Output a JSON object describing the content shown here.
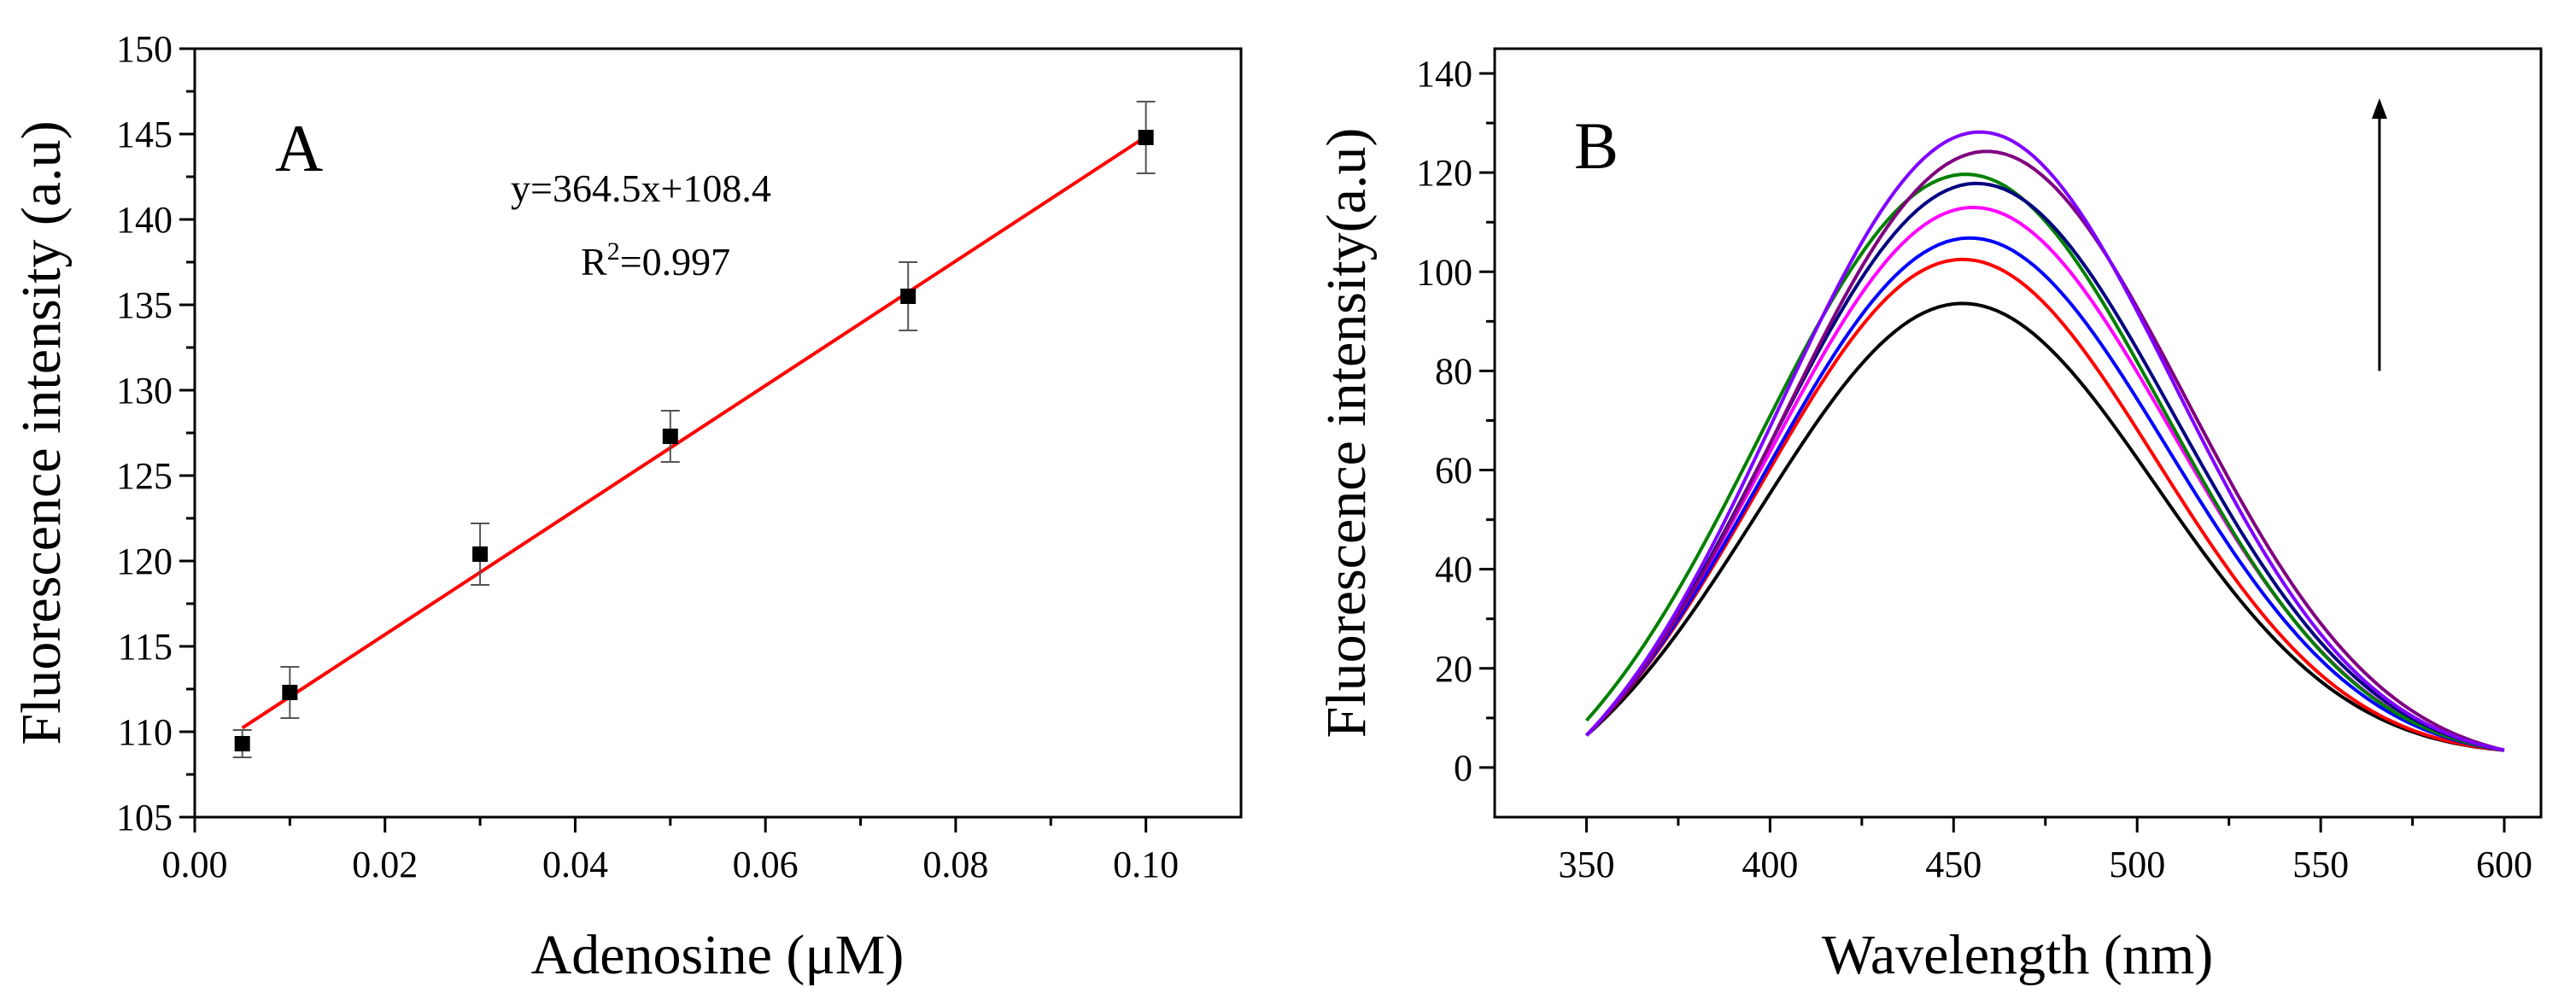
{
  "chart_data": [
    {
      "type": "scatter",
      "panel_label": "A",
      "xlabel": "Adenosine (μM)",
      "ylabel": "Fluorescence intensity (a.u)",
      "xlim": [
        0.0,
        0.11
      ],
      "ylim": [
        105,
        150
      ],
      "xticks": [
        0.0,
        0.02,
        0.04,
        0.06,
        0.08,
        0.1
      ],
      "xtick_labels": [
        "0.00",
        "0.02",
        "0.04",
        "0.06",
        "0.08",
        "0.10"
      ],
      "yticks": [
        105,
        110,
        115,
        120,
        125,
        130,
        135,
        140,
        145,
        150
      ],
      "ytick_labels": [
        "105",
        "110",
        "115",
        "120",
        "125",
        "130",
        "135",
        "140",
        "145",
        "150"
      ],
      "points": [
        {
          "x": 0.005,
          "y": 109.3,
          "err": 0.8
        },
        {
          "x": 0.01,
          "y": 112.3,
          "err": 1.5
        },
        {
          "x": 0.03,
          "y": 120.4,
          "err": 1.8
        },
        {
          "x": 0.05,
          "y": 127.3,
          "err": 1.5
        },
        {
          "x": 0.075,
          "y": 135.5,
          "err": 2.0
        },
        {
          "x": 0.1,
          "y": 144.8,
          "err": 2.1
        }
      ],
      "fit": {
        "slope": 364.5,
        "intercept": 108.4,
        "x_range": [
          0.005,
          0.1
        ],
        "color": "#ff0000"
      },
      "equation_text": "y=364.5x+108.4",
      "r2_prefix": "R",
      "r2_sup": "2",
      "r2_value": "=0.997",
      "grid": false
    },
    {
      "type": "line",
      "panel_label": "B",
      "xlabel": "Wavelength (nm)",
      "ylabel": "Fluorescence intensity(a.u)",
      "xlim": [
        325,
        610
      ],
      "ylim": [
        -10,
        145
      ],
      "xticks": [
        350,
        400,
        450,
        500,
        550,
        600
      ],
      "xtick_labels": [
        "350",
        "400",
        "450",
        "500",
        "550",
        "600"
      ],
      "yticks": [
        0,
        20,
        40,
        60,
        80,
        100,
        120,
        140
      ],
      "ytick_labels": [
        "0",
        "20",
        "40",
        "60",
        "80",
        "100",
        "120",
        "140"
      ],
      "series": [
        {
          "color": "#000000",
          "peak": 99.5,
          "center": 451,
          "sigma": 54,
          "start": 6.5,
          "end": 3.5
        },
        {
          "color": "#ff0000",
          "peak": 109.5,
          "center": 451,
          "sigma": 54,
          "start": 6.5,
          "end": 3.5
        },
        {
          "color": "#0000ff",
          "peak": 114.5,
          "center": 453,
          "sigma": 55,
          "start": 6.5,
          "end": 3.5
        },
        {
          "color": "#ff00ff",
          "peak": 121.0,
          "center": 454,
          "sigma": 55,
          "start": 6.5,
          "end": 3.5
        },
        {
          "color": "#008000",
          "peak": 127.5,
          "center": 452,
          "sigma": 55,
          "start": 9.5,
          "end": 3.5
        },
        {
          "color": "#000080",
          "peak": 126.0,
          "center": 455,
          "sigma": 55,
          "start": 6.5,
          "end": 3.5
        },
        {
          "color": "#800080",
          "peak": 132.0,
          "center": 458,
          "sigma": 55,
          "start": 6.5,
          "end": 3.5
        },
        {
          "color": "#8000ff",
          "peak": 136.0,
          "center": 456,
          "sigma": 54,
          "start": 6.5,
          "end": 3.5
        }
      ],
      "arrow": {
        "x": 566,
        "y_from": 80,
        "y_to": 135,
        "direction": "up"
      },
      "grid": false
    }
  ]
}
